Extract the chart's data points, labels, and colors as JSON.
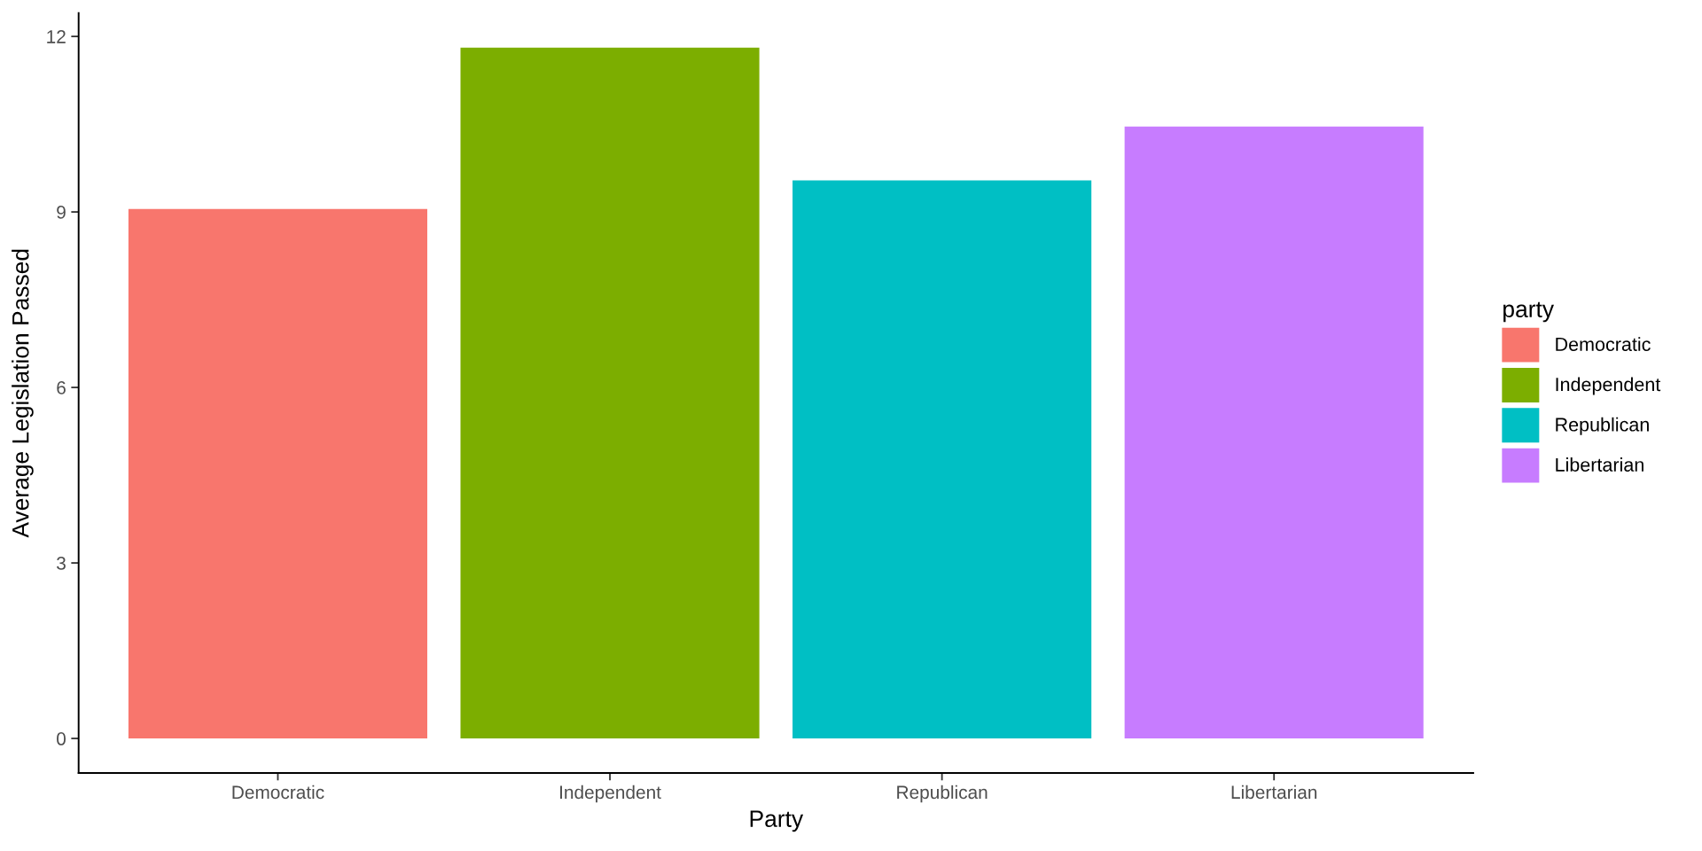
{
  "chart_data": {
    "type": "bar",
    "xlabel": "Party",
    "ylabel": "Average Legislation Passed",
    "legend_title": "party",
    "categories": [
      "Democratic",
      "Independent",
      "Republican",
      "Libertarian"
    ],
    "series": [
      {
        "name": "Democratic",
        "color": "#f8766d",
        "values": [
          9.05,
          null,
          null,
          null
        ]
      },
      {
        "name": "Independent",
        "color": "#7cae00",
        "values": [
          null,
          11.81,
          null,
          null
        ]
      },
      {
        "name": "Republican",
        "color": "#00bfc4",
        "values": [
          null,
          null,
          9.54,
          null
        ]
      },
      {
        "name": "Libertarian",
        "color": "#c77cff",
        "values": [
          null,
          null,
          null,
          10.46
        ]
      }
    ],
    "stacked": true,
    "ylim": [
      -0.59,
      12.4
    ],
    "yticks": [
      0,
      3,
      6,
      9,
      12
    ],
    "grid": false,
    "legend": "right"
  }
}
